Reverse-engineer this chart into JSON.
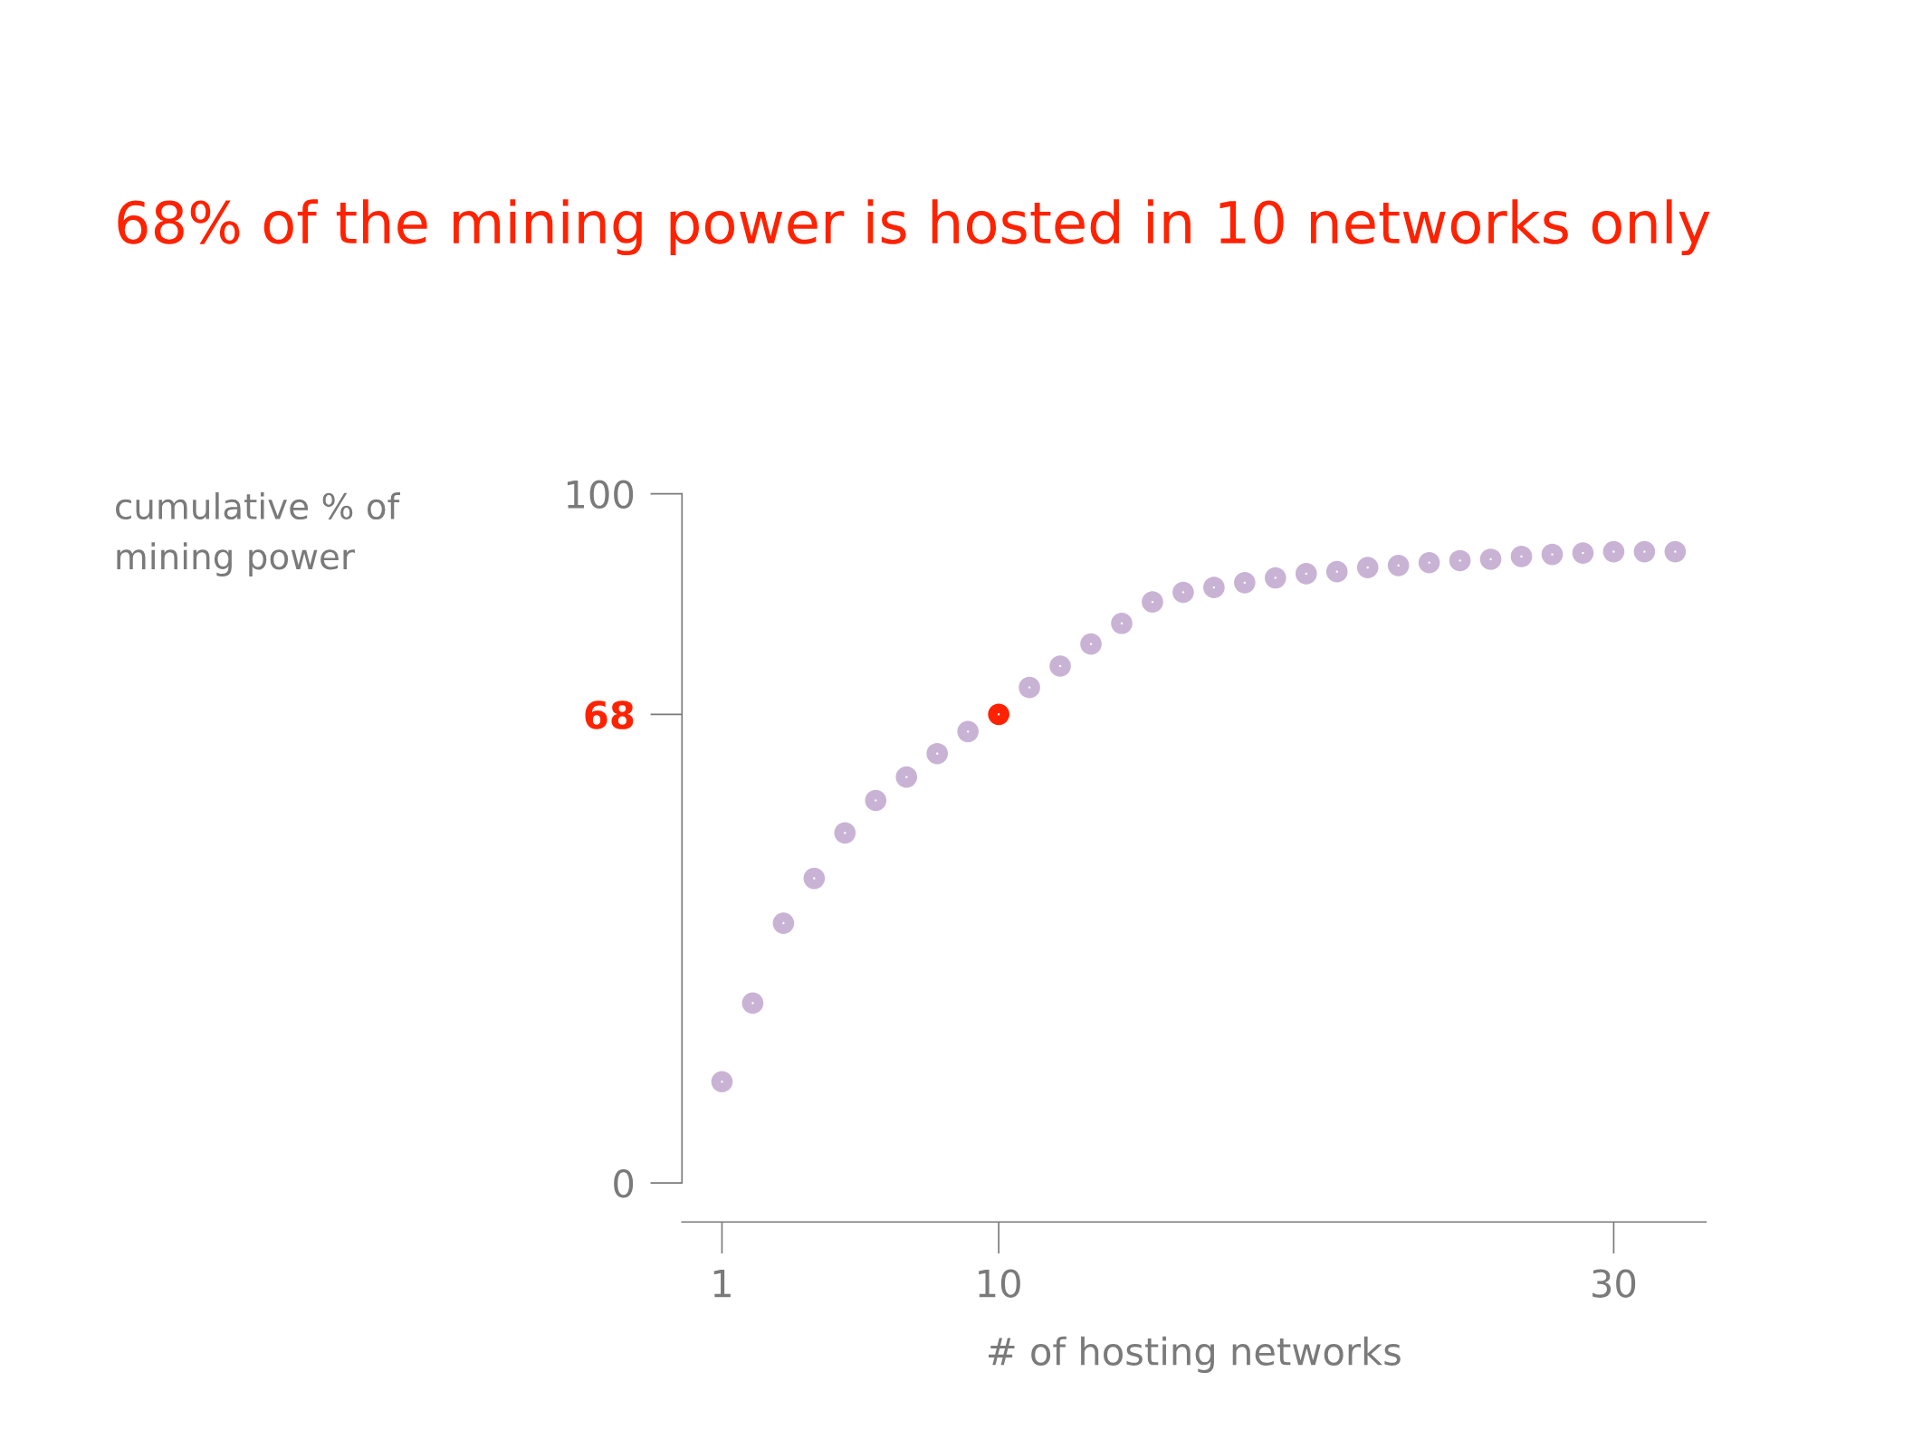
{
  "chart_data": {
    "type": "scatter",
    "title": "68% of the mining power is hosted in 10 networks only",
    "xlabel": "# of hosting networks",
    "ylabel": "cumulative % of\nmining power",
    "x": [
      1,
      2,
      3,
      4,
      5,
      6,
      7,
      8,
      9,
      10,
      11,
      12,
      13,
      14,
      15,
      16,
      17,
      18,
      19,
      20,
      21,
      22,
      23,
      24,
      25,
      26,
      27,
      28,
      29,
      30,
      31,
      32
    ],
    "values": [
      14.7,
      26.1,
      37.7,
      44.2,
      50.8,
      55.5,
      58.9,
      62.3,
      65.5,
      68,
      71.9,
      75.0,
      78.2,
      81.2,
      84.3,
      85.7,
      86.4,
      87.1,
      87.8,
      88.4,
      88.7,
      89.3,
      89.6,
      90.0,
      90.3,
      90.5,
      90.9,
      91.2,
      91.4,
      91.6,
      91.6,
      91.6
    ],
    "colors": [
      "#c9b3d5",
      "#c9b3d5",
      "#c9b3d5",
      "#c9b3d5",
      "#c9b3d5",
      "#c9b3d5",
      "#c9b3d5",
      "#c9b3d5",
      "#c9b3d5",
      "#ff2200",
      "#c9b3d5",
      "#c9b3d5",
      "#c9b3d5",
      "#c9b3d5",
      "#c9b3d5",
      "#c9b3d5",
      "#c9b3d5",
      "#c9b3d5",
      "#c9b3d5",
      "#c9b3d5",
      "#c9b3d5",
      "#c9b3d5",
      "#c9b3d5",
      "#c9b3d5",
      "#c9b3d5",
      "#c9b3d5",
      "#c9b3d5",
      "#c9b3d5",
      "#c9b3d5",
      "#c9b3d5",
      "#c9b3d5",
      "#c9b3d5"
    ],
    "marker": "circle",
    "xlim": [
      -0.3,
      33
    ],
    "ylim": [
      0,
      100
    ],
    "xticks": [
      1,
      10,
      30
    ],
    "yticks": [
      0,
      68,
      100
    ],
    "grid": false,
    "legend": false
  }
}
